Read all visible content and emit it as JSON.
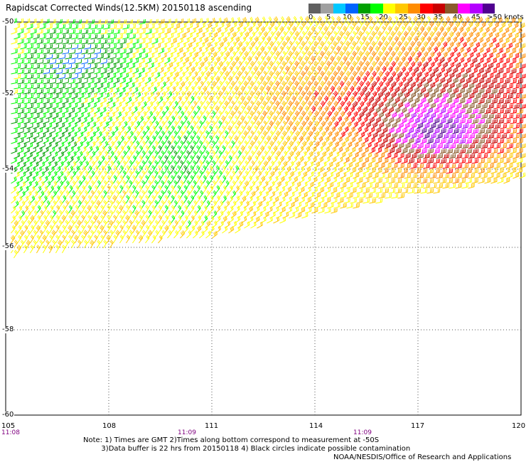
{
  "title": "Rapidscat Corrected Winds(12.5KM) 20150118 ascending",
  "legend": {
    "colors": [
      "#606060",
      "#a0a0a0",
      "#00c8ff",
      "#0064ff",
      "#00a000",
      "#00ff00",
      "#ffff00",
      "#ffc800",
      "#ff8c00",
      "#ff0000",
      "#c80000",
      "#8b5a2b",
      "#ff00ff",
      "#b400ff",
      "#500090"
    ],
    "labels": [
      "0",
      "5",
      "10",
      "15",
      "20",
      "25",
      "30",
      "35",
      "40",
      "45",
      ">50 knots"
    ]
  },
  "map": {
    "lat_labels": [
      "-50",
      "-52",
      "-54",
      "-56",
      "-58",
      "-60"
    ],
    "lon_labels": [
      "105",
      "108",
      "111",
      "114",
      "117",
      "120"
    ],
    "time_labels": [
      "11:08",
      "11:09",
      "11:09"
    ]
  },
  "notes": "Note: 1) Times are GMT 2)Times along bottom correspond to measurement at -50S\n        3)Data buffer is 22 hrs from 20150118 4) Black circles indicate possible contamination",
  "credit": "NOAA/NESDIS/Office of Research and Applications"
}
